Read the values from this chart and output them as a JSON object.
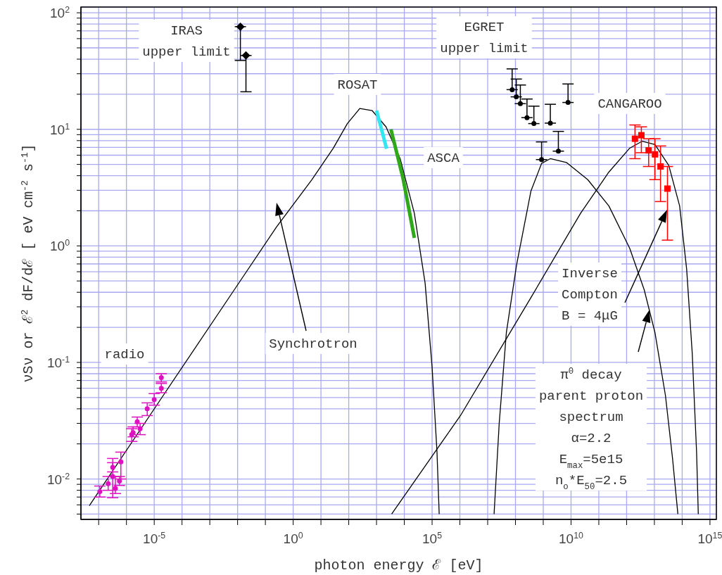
{
  "chart_data": {
    "type": "line",
    "xlabel": "photon energy ℰ [eV]",
    "ylabel": "νSν or ℰ$^{2}$ dF/dℰ [ eV cm$^{-2}$ s$^{-1}$]",
    "xlim": [
      2.3e-08,
      1700000000000000.0
    ],
    "ylim": [
      0.0045,
      112
    ],
    "log": "xy",
    "grid": true,
    "xticks": [
      {
        "value": 1e-07,
        "label": null
      },
      {
        "value": 1e-06,
        "label": null
      },
      {
        "value": 1e-05,
        "label": "10$^{-5}$"
      },
      {
        "value": 0.0001,
        "label": null
      },
      {
        "value": 0.001,
        "label": null
      },
      {
        "value": 0.01,
        "label": null
      },
      {
        "value": 0.1,
        "label": null
      },
      {
        "value": 1,
        "label": "10$^{0}$"
      },
      {
        "value": 10,
        "label": null
      },
      {
        "value": 100,
        "label": null
      },
      {
        "value": 1000,
        "label": null
      },
      {
        "value": 10000.0,
        "label": null
      },
      {
        "value": 100000.0,
        "label": "10$^{5}$"
      },
      {
        "value": 1000000.0,
        "label": null
      },
      {
        "value": 10000000.0,
        "label": null
      },
      {
        "value": 100000000.0,
        "label": null
      },
      {
        "value": 1000000000.0,
        "label": null
      },
      {
        "value": 10000000000.0,
        "label": "10$^{10}$"
      },
      {
        "value": 100000000000.0,
        "label": null
      },
      {
        "value": 1000000000000.0,
        "label": null
      },
      {
        "value": 10000000000000.0,
        "label": null
      },
      {
        "value": 100000000000000.0,
        "label": null
      },
      {
        "value": 1000000000000000.0,
        "label": "10$^{15}$"
      }
    ],
    "yticks": [
      {
        "value": 0.005,
        "label": null
      },
      {
        "value": 0.006,
        "label": null
      },
      {
        "value": 0.007,
        "label": null
      },
      {
        "value": 0.008,
        "label": null
      },
      {
        "value": 0.009,
        "label": null
      },
      {
        "value": 0.01,
        "label": "10$^{-2}$"
      },
      {
        "value": 0.02,
        "label": null
      },
      {
        "value": 0.03,
        "label": null
      },
      {
        "value": 0.04,
        "label": null
      },
      {
        "value": 0.05,
        "label": null
      },
      {
        "value": 0.06,
        "label": null
      },
      {
        "value": 0.07,
        "label": null
      },
      {
        "value": 0.08,
        "label": null
      },
      {
        "value": 0.09,
        "label": null
      },
      {
        "value": 0.1,
        "label": "10$^{-1}$"
      },
      {
        "value": 0.2,
        "label": null
      },
      {
        "value": 0.3,
        "label": null
      },
      {
        "value": 0.4,
        "label": null
      },
      {
        "value": 0.5,
        "label": null
      },
      {
        "value": 0.6,
        "label": null
      },
      {
        "value": 0.7,
        "label": null
      },
      {
        "value": 0.8,
        "label": null
      },
      {
        "value": 0.9,
        "label": null
      },
      {
        "value": 1,
        "label": "10$^{0}$"
      },
      {
        "value": 2,
        "label": null
      },
      {
        "value": 3,
        "label": null
      },
      {
        "value": 4,
        "label": null
      },
      {
        "value": 5,
        "label": null
      },
      {
        "value": 6,
        "label": null
      },
      {
        "value": 7,
        "label": null
      },
      {
        "value": 8,
        "label": null
      },
      {
        "value": 9,
        "label": null
      },
      {
        "value": 10,
        "label": "10$^{1}$"
      },
      {
        "value": 20,
        "label": null
      },
      {
        "value": 30,
        "label": null
      },
      {
        "value": 40,
        "label": null
      },
      {
        "value": 50,
        "label": null
      },
      {
        "value": 60,
        "label": null
      },
      {
        "value": 70,
        "label": null
      },
      {
        "value": 80,
        "label": null
      },
      {
        "value": 90,
        "label": null
      },
      {
        "value": 100,
        "label": "10$^{2}$"
      }
    ],
    "series": [
      {
        "color": "#000000",
        "x": [
          4.6e-08,
          2.1e-05,
          0.0076,
          0.25,
          4.7,
          28,
          89,
          250,
          690,
          2200,
          7100,
          23000,
          56000,
          100000,
          150000,
          180000
        ],
        "values": [
          0.0059,
          0.052,
          0.42,
          1.45,
          3.7,
          6.9,
          11.2,
          15.1,
          14.5,
          10.5,
          5.6,
          1.9,
          0.48,
          0.091,
          0.017,
          0.005
        ]
      },
      {
        "color": "#000000",
        "x": [
          3500,
          1050000.0,
          360000000.0,
          22000000000.0,
          230000000000.0,
          1300000000000.0,
          3600000000000.0,
          10500000000000.0,
          33000000000000.0,
          81000000000000.0,
          145000000000000.0,
          230000000000000.0,
          330000000000000.0,
          380000000000000.0
        ],
        "values": [
          0.005,
          0.035,
          0.36,
          1.9,
          4.3,
          6.9,
          7.9,
          7.4,
          4.9,
          2.2,
          0.63,
          0.12,
          0.017,
          0.005
        ]
      },
      {
        "color": "#000000",
        "x": [
          17000000.0,
          26000000.0,
          47000000.0,
          110000000.0,
          360000000.0,
          870000000.0,
          1800000000.0,
          6800000000.0,
          40000000000.0,
          230000000000.0,
          1300000000000.0,
          4300000000000.0,
          10500000000000.0,
          25000000000000.0,
          45000000000000.0,
          70000000000000.0
        ],
        "values": [
          0.005,
          0.03,
          0.18,
          0.69,
          2.95,
          5.1,
          5.6,
          5.2,
          3.7,
          2.2,
          0.95,
          0.42,
          0.18,
          0.052,
          0.015,
          0.005
        ]
      },
      {
        "color": "#33e6f0",
        "x": [
          1000,
          1600,
          2300
        ],
        "values": [
          14.5,
          9.5,
          6.8
        ]
      },
      {
        "color": "#2fa81a",
        "x": [
          3300,
          9000,
          23000
        ],
        "values": [
          10,
          3.8,
          1.17
        ]
      },
      {
        "type": "scatter",
        "color": "#e010c0",
        "marker": "circle",
        "x": [
          1.1e-07,
          2.2e-07,
          3.2e-07,
          3.2e-07,
          4e-07,
          5.6e-07,
          6.3e-07,
          1.55e-06,
          1.74e-06,
          2.45e-06,
          3.1e-06,
          5.6e-06,
          1e-05,
          1.8e-05,
          1.8e-05
        ],
        "values": [
          0.0078,
          0.0091,
          0.0105,
          0.0126,
          0.0083,
          0.0096,
          0.014,
          0.024,
          0.025,
          0.031,
          0.027,
          0.04,
          0.048,
          0.06,
          0.074
        ],
        "errors": [
          [
            0.007,
            0.0087
          ],
          [
            0.008,
            0.0105
          ],
          [
            0.0069,
            0.015
          ],
          [
            0.0115,
            0.0138
          ],
          [
            0.0075,
            0.0105
          ],
          [
            0.0088,
            0.0105
          ],
          [
            0.01,
            0.017
          ],
          [
            0.021,
            0.027
          ],
          [
            0.023,
            0.028
          ],
          [
            0.028,
            0.034
          ],
          [
            0.024,
            0.03
          ],
          [
            0.035,
            0.045
          ],
          [
            0.043,
            0.054
          ],
          [
            0.055,
            0.066
          ],
          [
            0.068,
            0.08
          ]
        ]
      },
      {
        "type": "scatter",
        "color": "#000000",
        "marker": "diamond",
        "x": [
          0.0126,
          0.02
        ],
        "values": [
          76,
          43
        ],
        "errors": [
          [
            39,
            76
          ],
          [
            21,
            43
          ]
        ]
      },
      {
        "type": "scatter",
        "color": "#000000",
        "marker": "circle",
        "x": [
          76000000.0,
          107000000.0,
          150000000.0,
          260000000.0,
          460000000.0,
          870000000.0,
          1800000000.0,
          3500000000.0,
          7800000000.0
        ],
        "values": [
          21.9,
          19,
          16.6,
          12.6,
          11.2,
          5.5,
          11.3,
          6.5,
          17
        ],
        "errors": [
          [
            21.9,
            33
          ],
          [
            19,
            27
          ],
          [
            16.6,
            24
          ],
          [
            12.6,
            18.2
          ],
          [
            11.2,
            15.8
          ],
          [
            5.5,
            7.8
          ],
          [
            11.3,
            16.4
          ],
          [
            6.5,
            9.6
          ],
          [
            17,
            24.5
          ]
        ]
      },
      {
        "type": "scatter",
        "color": "#ff0000",
        "marker": "square",
        "x": [
          2000000000000.0,
          3400000000000.0,
          6200000000000.0,
          10500000000000.0,
          16600000000000.0,
          29500000000000.0
        ],
        "values": [
          8.3,
          8.9,
          6.6,
          6.1,
          4.8,
          3.1
        ],
        "errors": [
          [
            5.6,
            10.9
          ],
          [
            6.3,
            10.5
          ],
          [
            4.8,
            8.3
          ],
          [
            3.7,
            8.3
          ],
          [
            2.4,
            7.2
          ],
          [
            1.12,
            4.8
          ]
        ]
      }
    ],
    "annotations": [
      "IRAS\nupper limit",
      "ROSAT",
      "EGRET\nupper limit",
      "CANGAROO",
      "ASCA",
      "Synchrotron",
      "radio",
      "Inverse\nCompton\nB = 4μG",
      "π$^{0}$ decay\nparent proton\nspectrum\nα=2.2\nE$_{max}$=5e15\nn$_{o}$*E$_{50}$=2.5"
    ]
  }
}
